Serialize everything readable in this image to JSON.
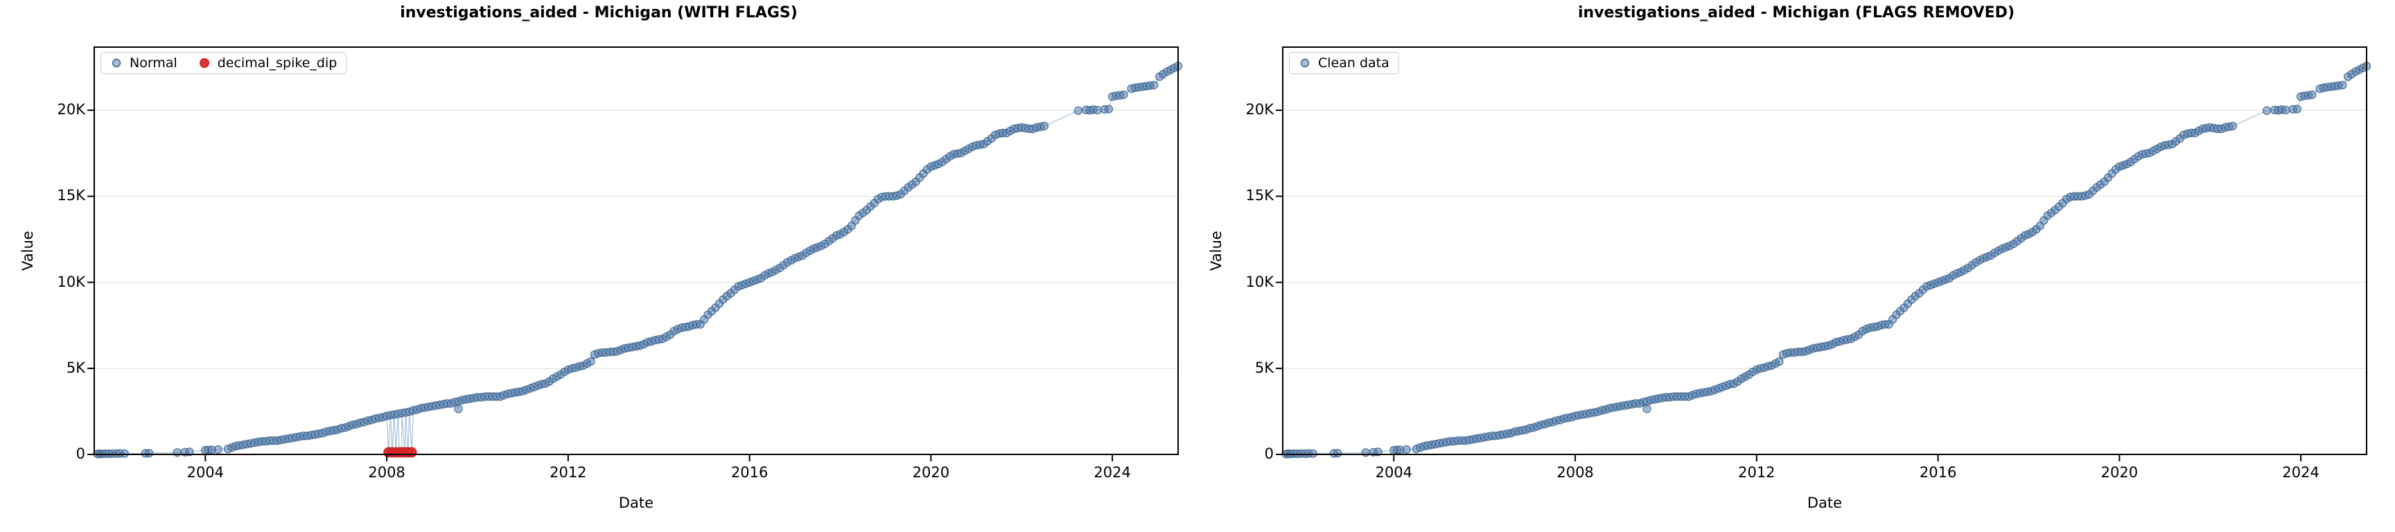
{
  "figure": {
    "background": "#ffffff"
  },
  "colors": {
    "normal_fill": "#4d7aac",
    "normal_edge": "#39618f",
    "connector_line": "#93b1d1",
    "flag_red": "#d62728",
    "flag_red_edge": "#c01f1f",
    "grid": "#e6e6e6",
    "spine": "#000000"
  },
  "chart_data": {
    "type": "scatter",
    "x_axis": {
      "label": "Date",
      "tick_labels": [
        "2004",
        "2008",
        "2012",
        "2016",
        "2020",
        "2024"
      ],
      "tick_values": [
        2004,
        2008,
        2012,
        2016,
        2020,
        2024
      ],
      "range": [
        2001.55,
        2025.45
      ],
      "grid": false
    },
    "y_axis": {
      "label": "Value",
      "tick_labels": [
        "0",
        "5K",
        "10K",
        "15K",
        "20K"
      ],
      "tick_values": [
        0,
        5000,
        10000,
        15000,
        20000
      ],
      "range": [
        0,
        23670
      ],
      "grid": true
    },
    "series_shared": {
      "description_anchor_points": [
        [
          2004.5,
          330
        ],
        [
          2004.67,
          480
        ],
        [
          2004.83,
          560
        ],
        [
          2005,
          650
        ],
        [
          2005.17,
          720
        ],
        [
          2005.33,
          780
        ],
        [
          2005.58,
          810
        ],
        [
          2005.75,
          880
        ],
        [
          2005.92,
          950
        ],
        [
          2006.08,
          1030
        ],
        [
          2006.25,
          1090
        ],
        [
          2006.42,
          1160
        ],
        [
          2006.58,
          1250
        ],
        [
          2006.75,
          1370
        ],
        [
          2006.92,
          1460
        ],
        [
          2007.08,
          1570
        ],
        [
          2007.25,
          1700
        ],
        [
          2007.42,
          1830
        ],
        [
          2007.58,
          1940
        ],
        [
          2007.75,
          2060
        ],
        [
          2007.92,
          2180
        ],
        [
          2008.08,
          2290
        ],
        [
          2008.25,
          2360
        ],
        [
          2008.42,
          2450
        ],
        [
          2008.58,
          2550
        ],
        [
          2008.75,
          2660
        ],
        [
          2008.92,
          2760
        ],
        [
          2009.08,
          2830
        ],
        [
          2009.25,
          2900
        ],
        [
          2009.42,
          2980
        ],
        [
          2009.5,
          3050
        ],
        [
          2009.67,
          3140
        ],
        [
          2009.83,
          3240
        ],
        [
          2010,
          3310
        ],
        [
          2010.25,
          3350
        ],
        [
          2010.5,
          3390
        ],
        [
          2010.67,
          3500
        ],
        [
          2010.83,
          3600
        ],
        [
          2011,
          3700
        ],
        [
          2011.25,
          3900
        ],
        [
          2011.5,
          4150
        ],
        [
          2011.75,
          4500
        ],
        [
          2012,
          4950
        ],
        [
          2012.17,
          5050
        ],
        [
          2012.33,
          5150
        ],
        [
          2012.5,
          5400
        ],
        [
          2012.58,
          5830
        ],
        [
          2012.92,
          5950
        ],
        [
          2013.08,
          6020
        ],
        [
          2013.33,
          6180
        ],
        [
          2013.58,
          6350
        ],
        [
          2013.83,
          6550
        ],
        [
          2014.08,
          6750
        ],
        [
          2014.25,
          6950
        ],
        [
          2014.42,
          7300
        ],
        [
          2014.58,
          7430
        ],
        [
          2014.92,
          7560
        ],
        [
          2015.08,
          8150
        ],
        [
          2015.25,
          8500
        ],
        [
          2015.5,
          9200
        ],
        [
          2015.75,
          9750
        ],
        [
          2015.92,
          9900
        ],
        [
          2016.08,
          10100
        ],
        [
          2016.25,
          10250
        ],
        [
          2016.5,
          10600
        ],
        [
          2016.75,
          11000
        ],
        [
          2017,
          11400
        ],
        [
          2017.25,
          11700
        ],
        [
          2017.5,
          12050
        ],
        [
          2017.75,
          12400
        ],
        [
          2018,
          12800
        ],
        [
          2018.25,
          13300
        ],
        [
          2018.42,
          13850
        ],
        [
          2018.67,
          14450
        ],
        [
          2018.83,
          14800
        ],
        [
          2019,
          15000
        ],
        [
          2019.33,
          15080
        ],
        [
          2019.5,
          15500
        ],
        [
          2019.75,
          16100
        ],
        [
          2020,
          16700
        ],
        [
          2020.33,
          17150
        ],
        [
          2020.58,
          17500
        ],
        [
          2020.92,
          17850
        ],
        [
          2021.17,
          18100
        ],
        [
          2021.42,
          18500
        ],
        [
          2021.67,
          18750
        ],
        [
          2021.83,
          18920
        ],
        [
          2022.54,
          19020
        ]
      ],
      "dense_sampling": {
        "start": 2004.5,
        "end": 2022.54,
        "step_years": 0.08333
      },
      "early_points": [
        [
          2001.62,
          25
        ],
        [
          2001.67,
          40
        ],
        [
          2001.72,
          30
        ],
        [
          2001.79,
          45
        ],
        [
          2001.87,
          35
        ],
        [
          2001.95,
          50
        ],
        [
          2002.04,
          45
        ],
        [
          2002.12,
          55
        ],
        [
          2002.22,
          50
        ],
        [
          2002.68,
          60
        ],
        [
          2002.76,
          70
        ],
        [
          2003.38,
          110
        ],
        [
          2003.55,
          130
        ],
        [
          2003.65,
          150
        ],
        [
          2004.0,
          240
        ],
        [
          2004.07,
          255
        ],
        [
          2004.14,
          265
        ],
        [
          2004.28,
          285
        ]
      ],
      "late_points": [
        [
          2023.25,
          19980
        ],
        [
          2023.42,
          20020
        ],
        [
          2023.5,
          20000
        ],
        [
          2023.58,
          20040
        ],
        [
          2023.67,
          20010
        ],
        [
          2023.83,
          20050
        ],
        [
          2023.92,
          20070
        ],
        [
          2024.0,
          20790
        ],
        [
          2024.08,
          20840
        ],
        [
          2024.17,
          20870
        ],
        [
          2024.25,
          20900
        ],
        [
          2024.42,
          21250
        ],
        [
          2024.5,
          21310
        ],
        [
          2024.58,
          21340
        ],
        [
          2024.67,
          21370
        ],
        [
          2024.75,
          21400
        ],
        [
          2024.83,
          21430
        ],
        [
          2024.92,
          21460
        ],
        [
          2025.04,
          21950
        ],
        [
          2025.12,
          22100
        ],
        [
          2025.21,
          22250
        ],
        [
          2025.29,
          22350
        ],
        [
          2025.37,
          22470
        ],
        [
          2025.45,
          22570
        ]
      ],
      "outlier_point": [
        2009.58,
        2650
      ],
      "final_value": 22570
    },
    "plots": [
      {
        "title": "investigations_aided - Michigan (WITH FLAGS)",
        "legend": [
          {
            "label": "Normal",
            "type": "normal"
          },
          {
            "label": "decimal_spike_dip",
            "type": "flag"
          }
        ],
        "include_flagged": true,
        "flagged_points": {
          "label": "decimal_spike_dip",
          "years": [
            2008.04,
            2008.12,
            2008.2,
            2008.28,
            2008.33,
            2008.4,
            2008.47,
            2008.55
          ],
          "value": 120
        }
      },
      {
        "title": "investigations_aided - Michigan (FLAGS REMOVED)",
        "legend": [
          {
            "label": "Clean data",
            "type": "normal"
          }
        ],
        "include_flagged": false
      }
    ]
  }
}
